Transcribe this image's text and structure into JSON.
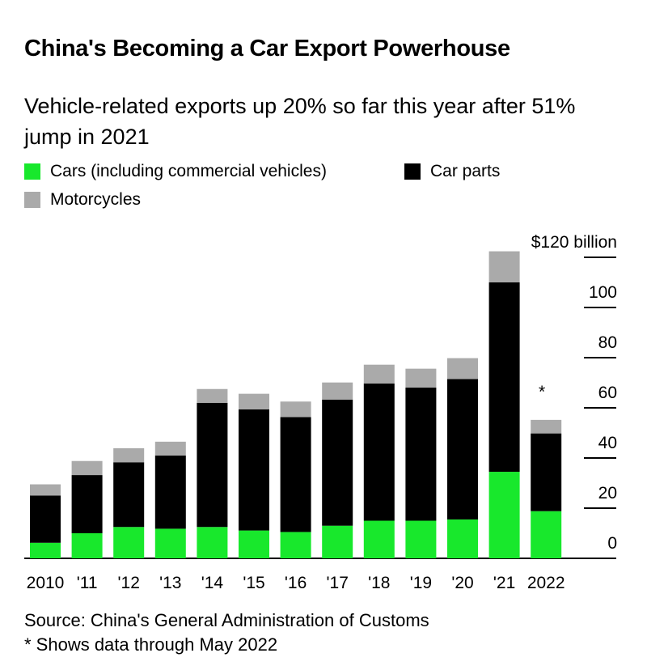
{
  "title": "China's Becoming a Car Export Powerhouse",
  "subtitle": "Vehicle-related exports up 20% so far this year after 51% jump in 2021",
  "colors": {
    "cars": "#18e82c",
    "car_parts": "#000000",
    "motorcycles": "#aaaaaa",
    "axis": "#000000"
  },
  "legend": [
    {
      "label": "Cars (including commercial vehicles)",
      "color": "#18e82c"
    },
    {
      "label": "Car parts",
      "color": "#000000"
    },
    {
      "label": "Motorcycles",
      "color": "#aaaaaa"
    }
  ],
  "source": "Source: China's General Administration of Customs",
  "note": "* Shows data through May 2022",
  "chart_data": {
    "type": "bar",
    "stacked": true,
    "title": "China's Becoming a Car Export Powerhouse",
    "subtitle": "Vehicle-related exports up 20% so far this year after 51% jump in 2021",
    "categories": [
      "2010",
      "'11",
      "'12",
      "'13",
      "'14",
      "'15",
      "'16",
      "'17",
      "'18",
      "'19",
      "'20",
      "'21",
      "2022"
    ],
    "series": [
      {
        "name": "Cars (including commercial vehicles)",
        "values": [
          6.2,
          10,
          12.5,
          11.8,
          12.5,
          11.1,
          10.5,
          13,
          15,
          15,
          15.5,
          34.5,
          18.8
        ]
      },
      {
        "name": "Car parts",
        "values": [
          18.8,
          23.2,
          25.8,
          29.2,
          49.5,
          48.3,
          45.8,
          50.3,
          54.7,
          53.1,
          56,
          75.5,
          31
        ]
      },
      {
        "name": "Motorcycles",
        "values": [
          4.5,
          5.6,
          5.6,
          5.5,
          5.5,
          6.2,
          6.2,
          6.8,
          7.5,
          7.5,
          8.3,
          12.4,
          5.4
        ]
      }
    ],
    "annotations": [
      {
        "category": "2022",
        "text": "*"
      }
    ],
    "y_ticks": [
      0,
      20,
      40,
      60,
      80,
      100,
      120
    ],
    "y_tick_labels": [
      "0",
      "20",
      "40",
      "60",
      "80",
      "100",
      "$120 billion"
    ],
    "ylim": [
      0,
      120
    ],
    "xlabel": "",
    "ylabel": "",
    "grid": false,
    "y_axis_side": "right",
    "legend_position": "top-left"
  }
}
